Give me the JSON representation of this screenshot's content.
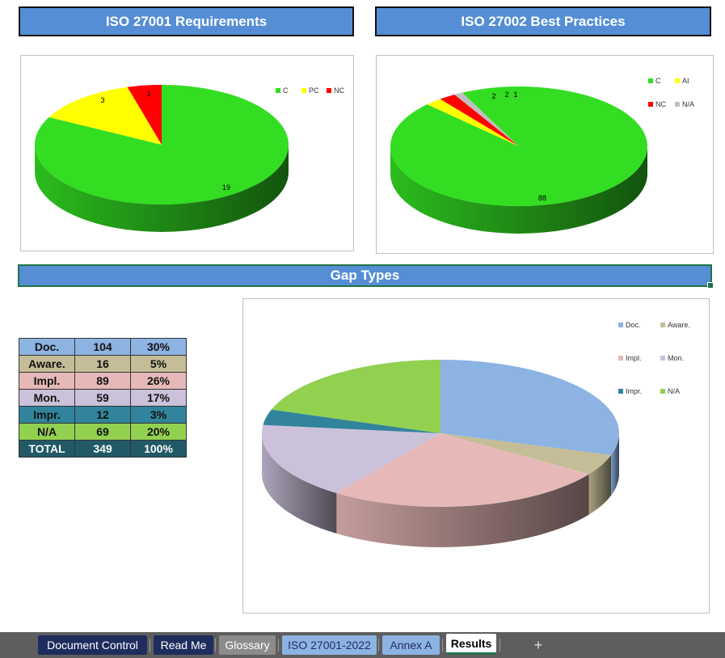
{
  "headers": {
    "iso27001": "ISO 27001 Requirements",
    "iso27002": "ISO 27002 Best Practices",
    "gap_types": "Gap Types"
  },
  "charts": {
    "chart_data": [
      {
        "type": "pie",
        "legend": [
          "C",
          "PC",
          "NC"
        ],
        "categories": [
          "C",
          "PC",
          "NC"
        ],
        "values": [
          19,
          3,
          1
        ],
        "colors": [
          "#33dd22",
          "#ffff00",
          "#ff0000"
        ],
        "labels": [
          "19",
          "3",
          "1"
        ],
        "legend_position": "top-right"
      },
      {
        "type": "pie",
        "legend": [
          "C",
          "AI",
          "NC",
          "N/A"
        ],
        "categories": [
          "C",
          "AI",
          "NC",
          "N/A"
        ],
        "values": [
          88,
          2,
          2,
          1
        ],
        "colors": [
          "#33dd22",
          "#ffff00",
          "#ff0000",
          "#bfbfbf"
        ],
        "labels": [
          "88",
          "2",
          "2",
          "1"
        ],
        "legend_position": "top-right"
      },
      {
        "type": "pie",
        "legend": [
          "Doc.",
          "Aware.",
          "Impl.",
          "Mon.",
          "Impr.",
          "N/A"
        ],
        "categories": [
          "Doc.",
          "Aware.",
          "Impl.",
          "Mon.",
          "Impr.",
          "N/A"
        ],
        "values": [
          104,
          16,
          89,
          59,
          12,
          69
        ],
        "colors": [
          "#8db3e2",
          "#c4bd97",
          "#e6b9b8",
          "#ccc1da",
          "#31849b",
          "#92d050"
        ],
        "legend_position": "top-right"
      }
    ]
  },
  "gap_table": {
    "rows": [
      {
        "label": "Doc.",
        "count": "104",
        "pct": "30%",
        "color": "#8db3e2"
      },
      {
        "label": "Aware.",
        "count": "16",
        "pct": "5%",
        "color": "#c4bd97"
      },
      {
        "label": "Impl.",
        "count": "89",
        "pct": "26%",
        "color": "#e6b9b8"
      },
      {
        "label": "Mon.",
        "count": "59",
        "pct": "17%",
        "color": "#ccc1da"
      },
      {
        "label": "Impr.",
        "count": "12",
        "pct": "3%",
        "color": "#31849b"
      },
      {
        "label": "N/A",
        "count": "69",
        "pct": "20%",
        "color": "#92d050"
      },
      {
        "label": "TOTAL",
        "count": "349",
        "pct": "100%",
        "color": "#215967",
        "text_color": "#ffffff"
      }
    ]
  },
  "tabs": [
    {
      "label": "Document Control",
      "bg": "#1f2d5e",
      "fg": "#ffffff"
    },
    {
      "label": "Read Me",
      "bg": "#1f2d5e",
      "fg": "#ffffff"
    },
    {
      "label": "Glossary",
      "bg": "#8c8c8c",
      "fg": "#ffffff"
    },
    {
      "label": "ISO 27001-2022",
      "bg": "#8db3e2",
      "fg": "#1f2d5e"
    },
    {
      "label": "Annex A",
      "bg": "#8db3e2",
      "fg": "#1f2d5e"
    },
    {
      "label": "Results",
      "bg": "#ffffff",
      "fg": "#000000",
      "active": true
    }
  ],
  "add_sheet_label": "+"
}
